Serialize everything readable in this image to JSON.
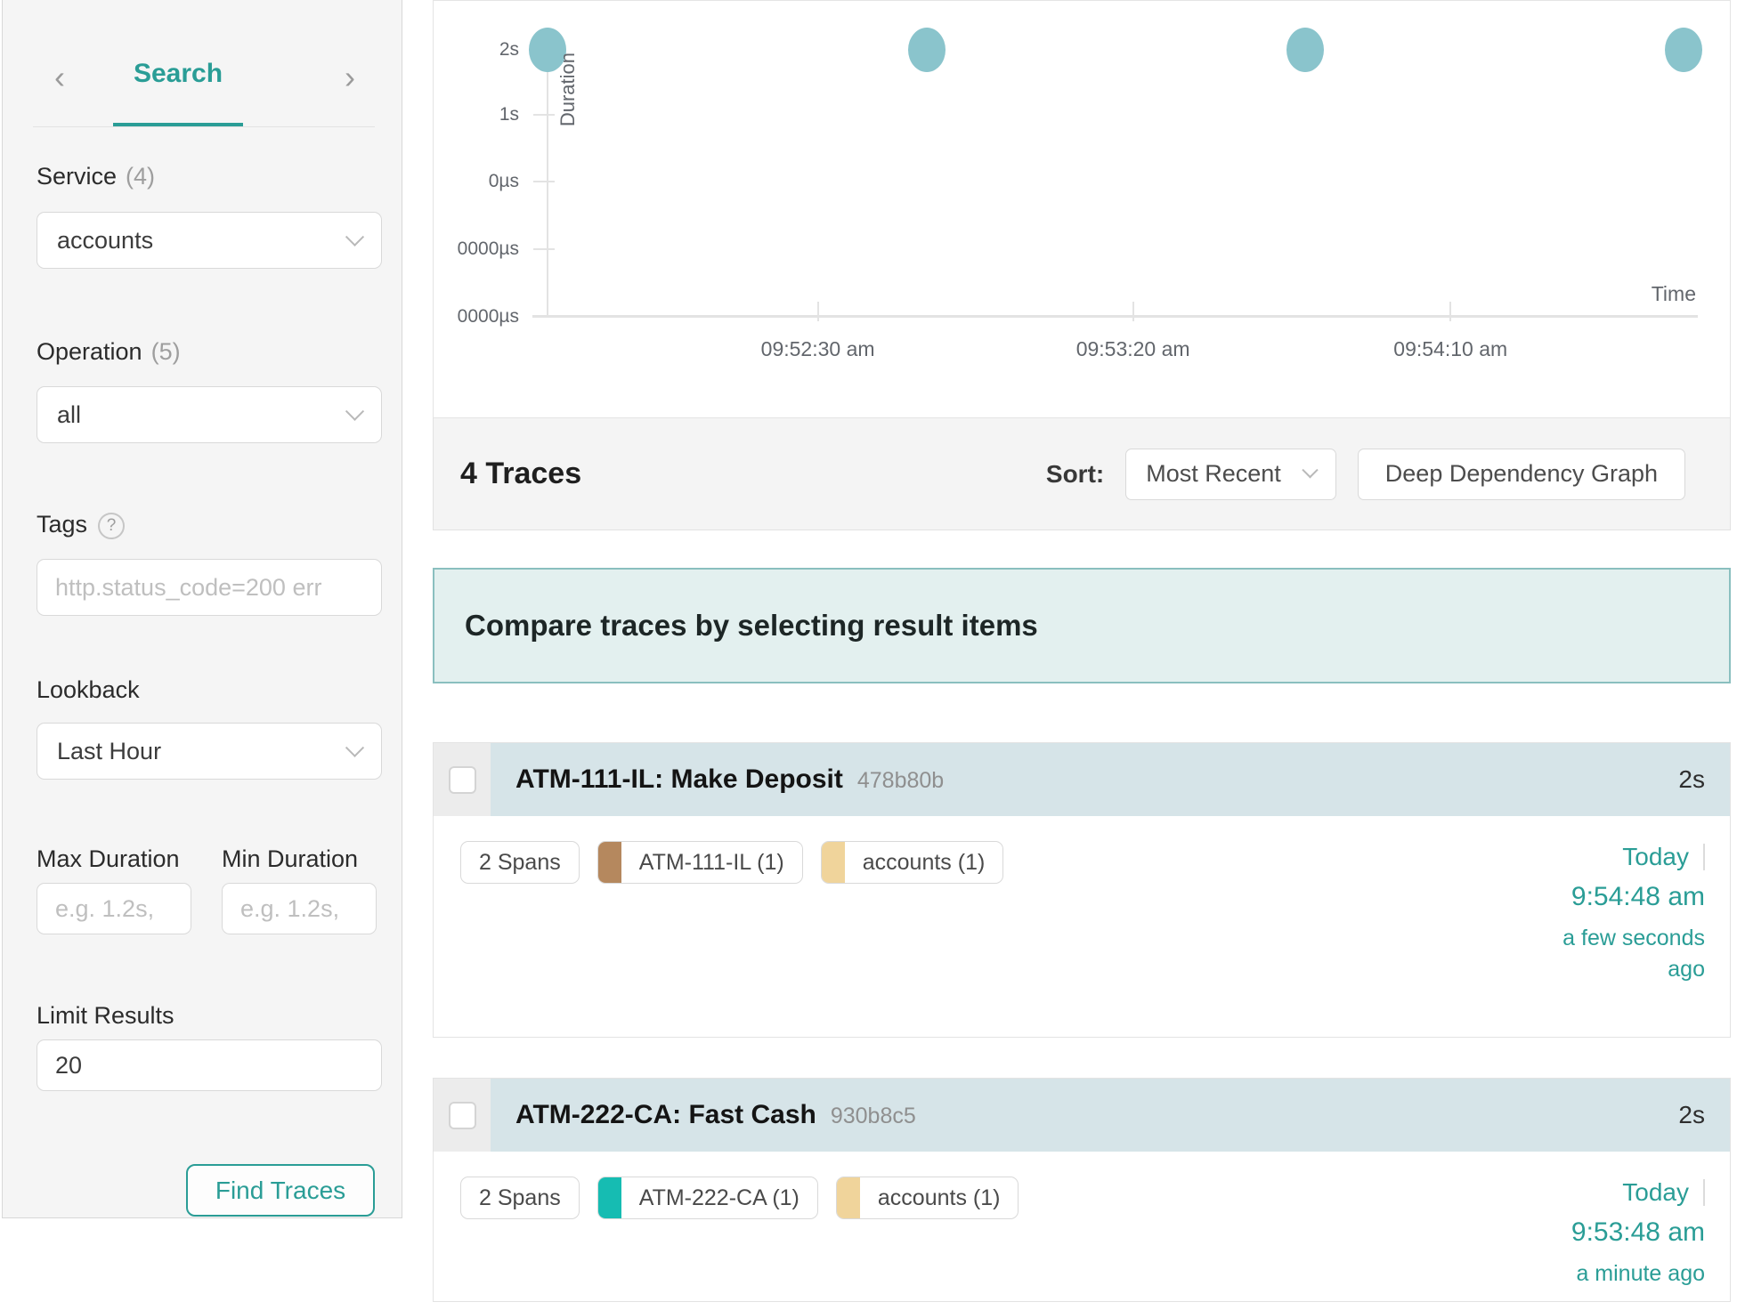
{
  "accent": "#2a9d96",
  "sidebar": {
    "prev_icon": "‹",
    "next_icon": "›",
    "tab_label": "Search",
    "service": {
      "label": "Service",
      "count": "(4)",
      "value": "accounts"
    },
    "operation": {
      "label": "Operation",
      "count": "(5)",
      "value": "all"
    },
    "tags": {
      "label": "Tags",
      "help_icon": "?",
      "placeholder": "http.status_code=200 err"
    },
    "lookback": {
      "label": "Lookback",
      "value": "Last Hour"
    },
    "max_duration": {
      "label": "Max Duration",
      "placeholder": "e.g. 1.2s,"
    },
    "min_duration": {
      "label": "Min Duration",
      "placeholder": "e.g. 1.2s,"
    },
    "limit": {
      "label": "Limit Results",
      "value": "20"
    },
    "find_button": "Find Traces"
  },
  "chart_data": {
    "type": "scatter",
    "ylabel": "Duration",
    "xlabel": "Time",
    "grid": false,
    "point_color": "#8ac4cc",
    "y_ticks": [
      {
        "label": "2s",
        "pct": 0
      },
      {
        "label": "1s",
        "pct": 24.3
      },
      {
        "label": "0µs",
        "pct": 49.3
      },
      {
        "label": "0000µs",
        "pct": 74.7
      },
      {
        "label": "0000µs",
        "pct": 100
      }
    ],
    "x_ticks": [
      {
        "label": "09:52:30 am",
        "pct": 23.5
      },
      {
        "label": "09:53:20 am",
        "pct": 50.9
      },
      {
        "label": "09:54:10 am",
        "pct": 78.5
      }
    ],
    "points": [
      {
        "time": "09:51:48 am",
        "duration": "2s",
        "x_pct": 0,
        "y_pct": 0
      },
      {
        "time": "09:52:48 am",
        "duration": "2s",
        "x_pct": 33.0,
        "y_pct": 0
      },
      {
        "time": "09:53:48 am",
        "duration": "2s",
        "x_pct": 65.9,
        "y_pct": 0
      },
      {
        "time": "09:54:48 am",
        "duration": "2s",
        "x_pct": 98.8,
        "y_pct": 0
      }
    ]
  },
  "results_header": {
    "count": "4 Traces",
    "sort_label": "Sort:",
    "sort_value": "Most Recent",
    "deep_dependency_button": "Deep Dependency Graph"
  },
  "compare_banner": "Compare traces by selecting result items",
  "traces": [
    {
      "name": "ATM-111-IL: Make Deposit",
      "id": "478b80b",
      "duration": "2s",
      "spans": "2 Spans",
      "tags": [
        {
          "label": "ATM-111-IL (1)",
          "color": "#b5885e"
        },
        {
          "label": "accounts (1)",
          "color": "#f0d49b"
        }
      ],
      "date": "Today",
      "time": "9:54:48 am",
      "relative": "a few seconds ago"
    },
    {
      "name": "ATM-222-CA: Fast Cash",
      "id": "930b8c5",
      "duration": "2s",
      "spans": "2 Spans",
      "tags": [
        {
          "label": "ATM-222-CA (1)",
          "color": "#16bcb2"
        },
        {
          "label": "accounts (1)",
          "color": "#f0d49b"
        }
      ],
      "date": "Today",
      "time": "9:53:48 am",
      "relative": "a minute ago"
    }
  ]
}
